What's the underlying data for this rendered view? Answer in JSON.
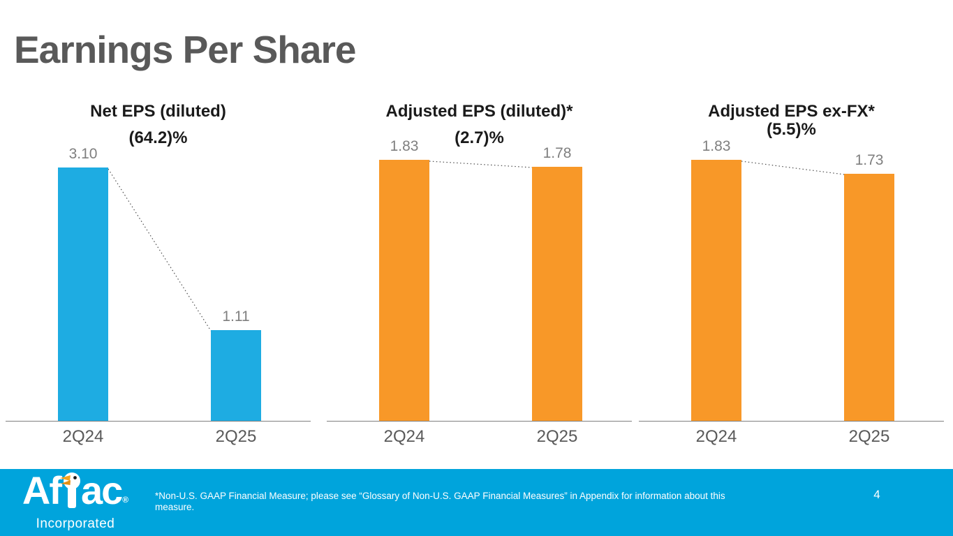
{
  "slide": {
    "title": "Earnings Per Share",
    "page_number": "4",
    "footnote": "*Non-U.S. GAAP Financial Measure; please see “Glossary of Non-U.S. GAAP Financial Measures” in Appendix for information about this measure."
  },
  "logo": {
    "brand_prefix": "Af",
    "brand_suffix": "ac",
    "registered_mark": "®",
    "subtitle": "Incorporated",
    "duck_icon": "aflac-duck-icon"
  },
  "colors": {
    "bar_blue": "#1EACE2",
    "bar_orange": "#F89828",
    "footer_blue": "#00A4DC",
    "heading_gray": "#595959",
    "value_label_gray": "#7F7F7F",
    "axis_gray": "#7F7F7F",
    "chart_title_black": "#1A1A1A",
    "footnote_white": "#FFFFFF"
  },
  "chart_data": [
    {
      "type": "bar",
      "title": "Net EPS (diluted)",
      "change_label": "(64.2)%",
      "categories": [
        "2Q24",
        "2Q25"
      ],
      "values": [
        3.1,
        1.11
      ],
      "value_labels": [
        "3.10",
        "1.11"
      ],
      "bar_color": "#1EACE2",
      "connector": "dotted-trend-line",
      "grid": false,
      "legend": false
    },
    {
      "type": "bar",
      "title": "Adjusted EPS (diluted)*",
      "change_label": "(2.7)%",
      "categories": [
        "2Q24",
        "2Q25"
      ],
      "values": [
        1.83,
        1.78
      ],
      "value_labels": [
        "1.83",
        "1.78"
      ],
      "bar_color": "#F89828",
      "connector": "dotted-trend-line",
      "grid": false,
      "legend": false
    },
    {
      "type": "bar",
      "title": "Adjusted EPS ex-FX*",
      "change_label": "(5.5)%",
      "categories": [
        "2Q24",
        "2Q25"
      ],
      "values": [
        1.83,
        1.73
      ],
      "value_labels": [
        "1.83",
        "1.73"
      ],
      "bar_color": "#F89828",
      "connector": "dotted-trend-line",
      "grid": false,
      "legend": false
    }
  ]
}
